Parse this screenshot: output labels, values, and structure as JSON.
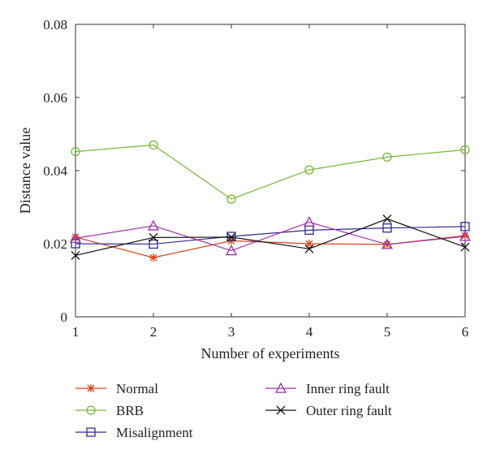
{
  "chart_data": {
    "type": "line",
    "title": "",
    "xlabel": "Number of experiments",
    "ylabel": "Distance value",
    "x": [
      1,
      2,
      3,
      4,
      5,
      6
    ],
    "xlim": [
      1,
      6
    ],
    "ylim": [
      0,
      0.08
    ],
    "xticks": [
      "1",
      "2",
      "3",
      "4",
      "5",
      "6"
    ],
    "yticks": [
      "0",
      "0.02",
      "0.04",
      "0.06",
      "0.08"
    ],
    "grid": false,
    "legend_position": "bottom",
    "series": [
      {
        "name": "Normal",
        "color": "#d9441e",
        "marker": "asterisk",
        "values": [
          0.0218,
          0.0162,
          0.0208,
          0.02,
          0.0198,
          0.0222
        ]
      },
      {
        "name": "BRB",
        "color": "#79b832",
        "marker": "circle",
        "values": [
          0.0452,
          0.047,
          0.0322,
          0.0402,
          0.0437,
          0.0457
        ]
      },
      {
        "name": "Misalignment",
        "color": "#2e2c8e",
        "marker": "square",
        "values": [
          0.02,
          0.0199,
          0.022,
          0.0237,
          0.0243,
          0.0247
        ]
      },
      {
        "name": "Inner ring fault",
        "color": "#9b2fa6",
        "marker": "triangle",
        "values": [
          0.0215,
          0.0249,
          0.0181,
          0.0259,
          0.0198,
          0.022
        ]
      },
      {
        "name": "Outer ring fault",
        "color": "#111111",
        "marker": "x",
        "values": [
          0.0168,
          0.0217,
          0.0218,
          0.0186,
          0.0268,
          0.0191
        ]
      }
    ]
  }
}
